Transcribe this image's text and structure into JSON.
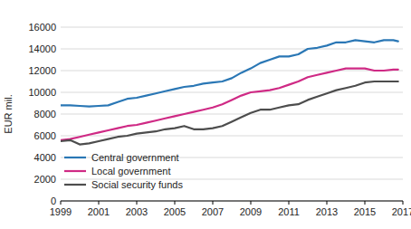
{
  "chart_data": {
    "type": "line",
    "y_label": "EUR mil.",
    "x": [
      1999,
      1999.5,
      2000,
      2000.5,
      2001,
      2001.5,
      2002,
      2002.5,
      2003,
      2003.5,
      2004,
      2004.5,
      2005,
      2005.5,
      2006,
      2006.5,
      2007,
      2007.5,
      2008,
      2008.5,
      2009,
      2009.5,
      2010,
      2010.5,
      2011,
      2011.5,
      2012,
      2012.5,
      2013,
      2013.5,
      2014,
      2014.5,
      2015,
      2015.5,
      2016,
      2016.5,
      2016.75
    ],
    "series": [
      {
        "name": "Central government",
        "color": "#2a77b5",
        "values": [
          8800,
          8800,
          8750,
          8700,
          8750,
          8800,
          9100,
          9400,
          9500,
          9700,
          9900,
          10100,
          10300,
          10500,
          10600,
          10800,
          10900,
          11000,
          11300,
          11800,
          12200,
          12700,
          13000,
          13300,
          13300,
          13500,
          14000,
          14100,
          14300,
          14600,
          14600,
          14800,
          14700,
          14600,
          14800,
          14800,
          14700
        ]
      },
      {
        "name": "Local government",
        "color": "#cf2a85",
        "values": [
          5600,
          5700,
          5900,
          6100,
          6300,
          6500,
          6700,
          6900,
          7000,
          7200,
          7400,
          7600,
          7800,
          8000,
          8200,
          8400,
          8600,
          8900,
          9300,
          9700,
          10000,
          10100,
          10200,
          10400,
          10700,
          11000,
          11400,
          11600,
          11800,
          12000,
          12200,
          12200,
          12200,
          12000,
          12000,
          12100,
          12100
        ]
      },
      {
        "name": "Social security funds",
        "color": "#4d4d4d",
        "values": [
          5500,
          5600,
          5200,
          5300,
          5500,
          5700,
          5900,
          6000,
          6200,
          6300,
          6400,
          6600,
          6700,
          6900,
          6600,
          6600,
          6700,
          6900,
          7300,
          7700,
          8100,
          8400,
          8400,
          8600,
          8800,
          8900,
          9300,
          9600,
          9900,
          10200,
          10400,
          10600,
          10900,
          11000,
          11000,
          11000,
          11000
        ]
      }
    ],
    "xlim": [
      1999,
      2017
    ],
    "xticks": [
      1999,
      2001,
      2003,
      2005,
      2007,
      2009,
      2011,
      2013,
      2015,
      2017
    ],
    "ylim": [
      0,
      16000
    ],
    "yticks": [
      0,
      2000,
      4000,
      6000,
      8000,
      10000,
      12000,
      14000,
      16000
    ],
    "grid": true,
    "legend": "lower left"
  }
}
